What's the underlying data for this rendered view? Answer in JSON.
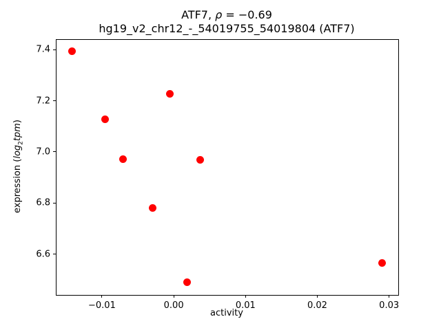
{
  "figure": {
    "title": {
      "prefix": "ATF7, ",
      "rho": "ρ",
      "suffix": " = −0.69"
    },
    "subtitle": "hg19_v2_chr12_-_54019755_54019804 (ATF7)",
    "xlabel": "activity",
    "ylabel": {
      "prefix": "expression (",
      "log": "log",
      "sub": "2",
      "rest": "tpm",
      "suffix": ")"
    }
  },
  "chart_data": {
    "type": "scatter",
    "title": "ATF7, ρ = −0.69",
    "subtitle": "hg19_v2_chr12_-_54019755_54019804 (ATF7)",
    "xlabel": "activity",
    "ylabel": "expression (log2tpm)",
    "marker_color": "#ff0000",
    "background_color": "#ffffff",
    "spine_color": "#000000",
    "grid": false,
    "legend": null,
    "xlim": [
      -0.01633,
      0.03128
    ],
    "ylim": [
      6.441,
      7.438
    ],
    "xticks": [
      -0.01,
      0.0,
      0.01,
      0.02,
      0.03
    ],
    "xtick_labels": [
      "−0.01",
      "0.00",
      "0.01",
      "0.02",
      "0.03"
    ],
    "yticks": [
      6.6,
      6.8,
      7.0,
      7.2,
      7.4
    ],
    "ytick_labels": [
      "6.6",
      "6.8",
      "7.0",
      "7.2",
      "7.4"
    ],
    "points": [
      {
        "x": -0.0142,
        "y": 7.393
      },
      {
        "x": -0.0096,
        "y": 7.127
      },
      {
        "x": -0.0071,
        "y": 6.973
      },
      {
        "x": -0.0029,
        "y": 6.78
      },
      {
        "x": -0.0005,
        "y": 7.226
      },
      {
        "x": 0.0019,
        "y": 6.492
      },
      {
        "x": 0.0037,
        "y": 6.97
      },
      {
        "x": 0.029,
        "y": 6.566
      }
    ]
  }
}
